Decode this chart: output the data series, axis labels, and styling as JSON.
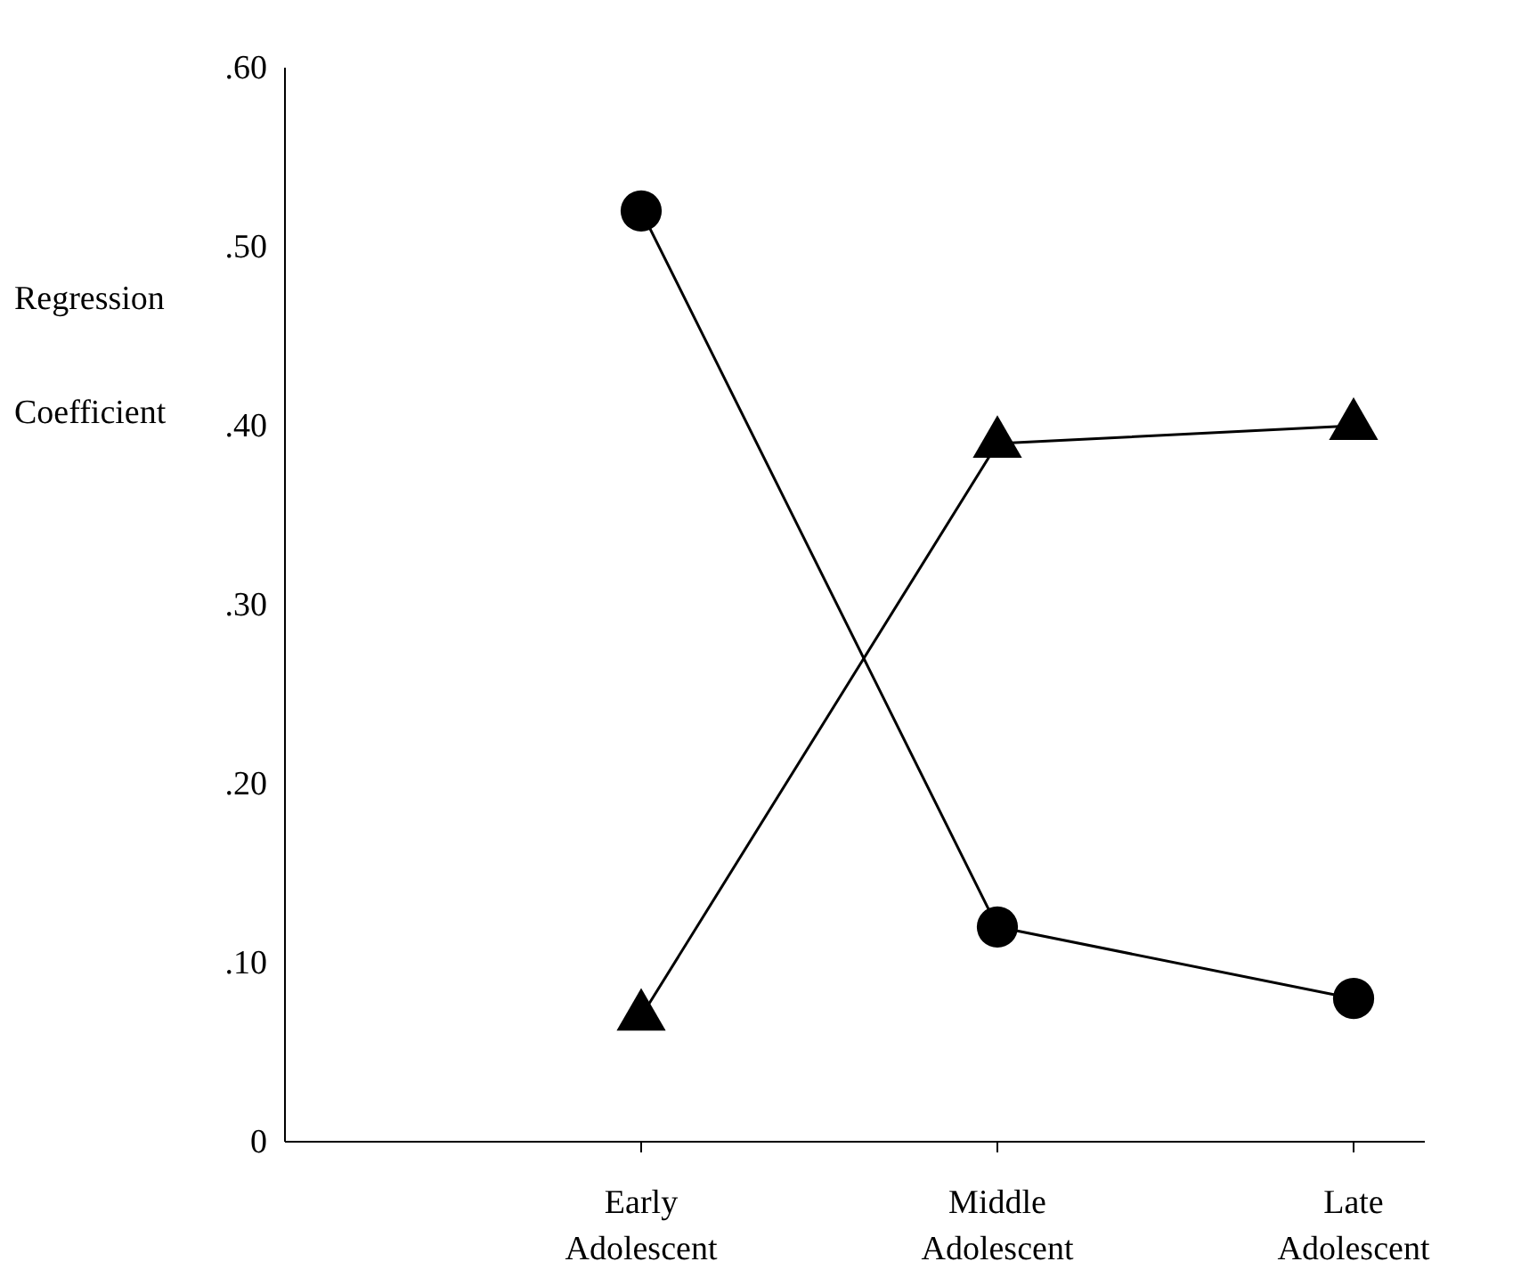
{
  "chart_data": {
    "type": "line",
    "ylabel": "Regression Coefficient",
    "categories": [
      "Early Adolescent",
      "Middle Adolescent",
      "Late Adolescent"
    ],
    "series": [
      {
        "color": "#000000",
        "marker": "circle",
        "values": [
          0.52,
          0.12,
          0.08
        ]
      },
      {
        "color": "#000000",
        "marker": "triangle",
        "values": [
          0.07,
          0.39,
          0.4
        ]
      }
    ],
    "ylim": [
      0,
      0.6
    ],
    "yticks": [
      0,
      {
        "value": 0.1,
        "label": ".10"
      },
      {
        "value": 0.2,
        "label": ".20"
      },
      {
        "value": 0.3,
        "label": ".30"
      },
      {
        "value": 0.4,
        "label": ".40"
      },
      {
        "value": 0.5,
        "label": ".50"
      },
      {
        "value": 0.6,
        "label": ".60"
      }
    ],
    "grid": false,
    "line_style": "solid"
  }
}
